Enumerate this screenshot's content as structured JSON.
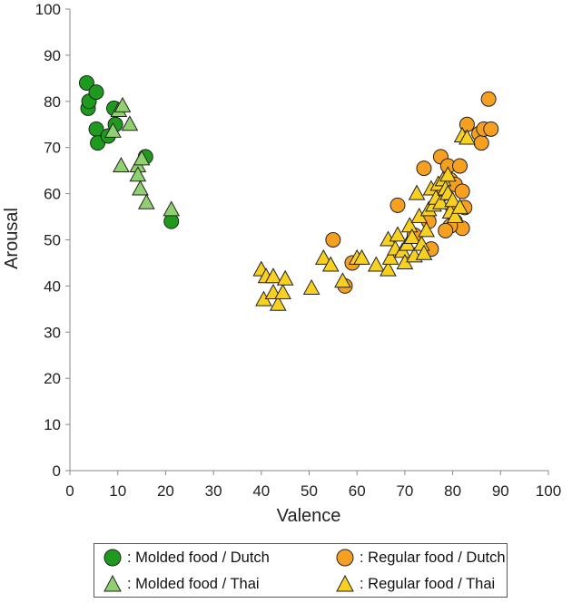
{
  "chart_data": {
    "type": "scatter",
    "xlabel": "Valence",
    "ylabel": "Arousal",
    "xlim": [
      0,
      100
    ],
    "ylim": [
      0,
      100
    ],
    "xticks": [
      "0",
      "10",
      "20",
      "30",
      "40",
      "50",
      "60",
      "70",
      "80",
      "90",
      "100"
    ],
    "yticks": [
      "0",
      "10",
      "20",
      "30",
      "40",
      "50",
      "60",
      "70",
      "80",
      "90",
      "100"
    ],
    "series": [
      {
        "name": "Molded food / Dutch",
        "legend_label": ": Molded food / Dutch",
        "marker": "circle",
        "color": "#1e9a1e",
        "points": [
          [
            3.5,
            84
          ],
          [
            3.8,
            78.5
          ],
          [
            4.0,
            80
          ],
          [
            5.5,
            82
          ],
          [
            5.5,
            74
          ],
          [
            5.8,
            71
          ],
          [
            8.0,
            72.5
          ],
          [
            9.2,
            78.5
          ],
          [
            9.5,
            75
          ],
          [
            15.8,
            68
          ],
          [
            21.2,
            54
          ]
        ]
      },
      {
        "name": "Molded food / Thai",
        "legend_label": ": Molded food / Thai",
        "marker": "triangle",
        "color": "#90d070",
        "points": [
          [
            9.0,
            73.5
          ],
          [
            10.2,
            78
          ],
          [
            11.0,
            79
          ],
          [
            12.5,
            75
          ],
          [
            10.7,
            66
          ],
          [
            14.2,
            66
          ],
          [
            15.0,
            67.5
          ],
          [
            14.2,
            64
          ],
          [
            14.7,
            61
          ],
          [
            16.0,
            58
          ],
          [
            21.2,
            56.5
          ]
        ]
      },
      {
        "name": "Regular food / Dutch",
        "legend_label": ": Regular food / Dutch",
        "marker": "circle",
        "color": "#f5a020",
        "points": [
          [
            55.0,
            50
          ],
          [
            57.5,
            40
          ],
          [
            59.0,
            45
          ],
          [
            68.5,
            57.5
          ],
          [
            72.0,
            51
          ],
          [
            75.0,
            54
          ],
          [
            74.0,
            65.5
          ],
          [
            75.5,
            48
          ],
          [
            77.5,
            68
          ],
          [
            78.0,
            60
          ],
          [
            79.0,
            66
          ],
          [
            79.5,
            63
          ],
          [
            80.0,
            57
          ],
          [
            80.5,
            62
          ],
          [
            80.5,
            54
          ],
          [
            81.5,
            66
          ],
          [
            82.0,
            60.5
          ],
          [
            82.5,
            57
          ],
          [
            82.0,
            52.5
          ],
          [
            79.5,
            53
          ],
          [
            78.5,
            52
          ],
          [
            83.0,
            75
          ],
          [
            85.5,
            73
          ],
          [
            86.0,
            71
          ],
          [
            86.5,
            74
          ],
          [
            88.0,
            74
          ],
          [
            87.5,
            80.5
          ]
        ]
      },
      {
        "name": "Regular food / Thai",
        "legend_label": ": Regular food / Thai",
        "marker": "triangle",
        "color": "#f8d020",
        "points": [
          [
            40.0,
            43.5
          ],
          [
            40.5,
            37
          ],
          [
            41.0,
            42
          ],
          [
            42.5,
            42
          ],
          [
            42.5,
            38.5
          ],
          [
            43.5,
            36
          ],
          [
            44.5,
            38.5
          ],
          [
            45.0,
            41.5
          ],
          [
            50.5,
            39.5
          ],
          [
            53.0,
            46
          ],
          [
            54.5,
            44.5
          ],
          [
            57.0,
            41
          ],
          [
            60.0,
            46
          ],
          [
            61.0,
            46
          ],
          [
            64.0,
            44.5
          ],
          [
            66.5,
            43.5
          ],
          [
            67.0,
            46
          ],
          [
            66.5,
            50
          ],
          [
            68.0,
            48
          ],
          [
            68.5,
            51
          ],
          [
            69.5,
            47.5
          ],
          [
            70.0,
            45
          ],
          [
            70.5,
            49
          ],
          [
            71.0,
            53
          ],
          [
            71.5,
            50.5
          ],
          [
            72.0,
            46.5
          ],
          [
            72.5,
            60
          ],
          [
            73.0,
            55
          ],
          [
            73.5,
            49
          ],
          [
            74.0,
            47
          ],
          [
            74.5,
            52
          ],
          [
            75.0,
            56.5
          ],
          [
            75.5,
            61
          ],
          [
            76.0,
            57.5
          ],
          [
            76.5,
            59
          ],
          [
            77.0,
            62
          ],
          [
            77.5,
            58
          ],
          [
            78.0,
            63
          ],
          [
            78.5,
            61
          ],
          [
            79.0,
            64
          ],
          [
            79.0,
            60
          ],
          [
            79.5,
            56
          ],
          [
            80.0,
            58.5
          ],
          [
            80.5,
            55
          ],
          [
            81.5,
            57
          ],
          [
            82.0,
            72.5
          ],
          [
            83.0,
            72
          ]
        ]
      }
    ]
  }
}
